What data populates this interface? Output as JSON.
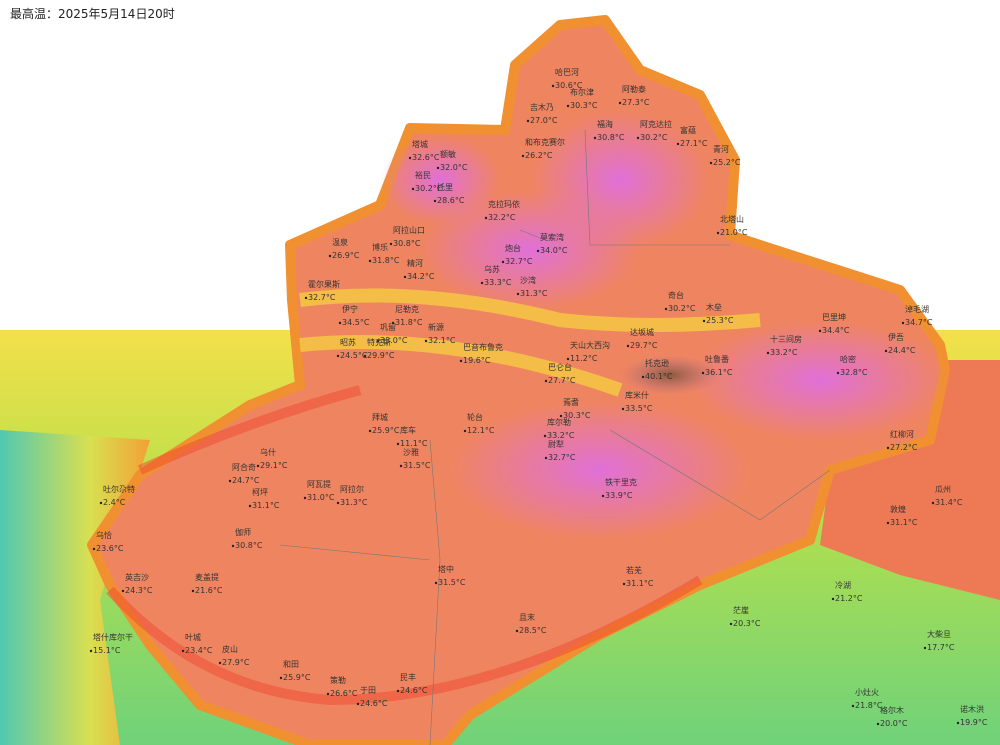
{
  "title": "最高温：2025年5月14日20时",
  "stations": [
    {
      "name": "哈巴河",
      "temp": "30.6°C"
    },
    {
      "name": "布尔津",
      "temp": "30.3°C"
    },
    {
      "name": "阿勒泰",
      "temp": "27.3°C"
    },
    {
      "name": "吉木乃",
      "temp": "27.0°C"
    },
    {
      "name": "福海",
      "temp": "30.8°C"
    },
    {
      "name": "阿克达拉",
      "temp": "30.2°C"
    },
    {
      "name": "富蕴",
      "temp": "27.1°C"
    },
    {
      "name": "青河",
      "temp": "25.2°C"
    },
    {
      "name": "和布克赛尔",
      "temp": "26.2°C"
    },
    {
      "name": "塔城",
      "temp": "32.6°C"
    },
    {
      "name": "额敏",
      "temp": "32.0°C"
    },
    {
      "name": "裕民",
      "temp": "30.2°C"
    },
    {
      "name": "托里",
      "temp": "28.6°C"
    },
    {
      "name": "克拉玛依",
      "temp": "32.2°C"
    },
    {
      "name": "北塔山",
      "temp": "21.0°C"
    },
    {
      "name": "阿拉山口",
      "temp": "30.8°C"
    },
    {
      "name": "温泉",
      "temp": "26.9°C"
    },
    {
      "name": "博乐",
      "temp": "31.8°C"
    },
    {
      "name": "精河",
      "temp": "34.2°C"
    },
    {
      "name": "莫索湾",
      "temp": "34.0°C"
    },
    {
      "name": "炮台",
      "temp": "32.7°C"
    },
    {
      "name": "乌苏",
      "temp": "33.3°C"
    },
    {
      "name": "沙湾",
      "temp": "31.3°C"
    },
    {
      "name": "奇台",
      "temp": "30.2°C"
    },
    {
      "name": "木垒",
      "temp": "25.3°C"
    },
    {
      "name": "巴里坤",
      "temp": "34.4°C"
    },
    {
      "name": "淖毛湖",
      "temp": "34.7°C"
    },
    {
      "name": "伊吾",
      "temp": "24.4°C"
    },
    {
      "name": "十三间房",
      "temp": "33.2°C"
    },
    {
      "name": "哈密",
      "temp": "32.8°C"
    },
    {
      "name": "霍尔果斯",
      "temp": "32.7°C"
    },
    {
      "name": "伊宁",
      "temp": "34.5°C"
    },
    {
      "name": "尼勒克",
      "temp": "31.8°C"
    },
    {
      "name": "巩留",
      "temp": "33.0°C"
    },
    {
      "name": "新源",
      "temp": "32.1°C"
    },
    {
      "name": "昭苏",
      "temp": "24.5°C"
    },
    {
      "name": "特克斯",
      "temp": "29.9°C"
    },
    {
      "name": "巴音布鲁克",
      "temp": "19.6°C"
    },
    {
      "name": "天山大西沟",
      "temp": "11.2°C"
    },
    {
      "name": "达坂城",
      "temp": "29.7°C"
    },
    {
      "name": "托克逊",
      "temp": "40.1°C"
    },
    {
      "name": "吐鲁番",
      "temp": "36.1°C"
    },
    {
      "name": "巴仑台",
      "temp": "27.7°C"
    },
    {
      "name": "焉耆",
      "temp": "30.3°C"
    },
    {
      "name": "库米什",
      "temp": "33.5°C"
    },
    {
      "name": "拜城",
      "temp": "25.9°C"
    },
    {
      "name": "库车",
      "temp": "11.1°C"
    },
    {
      "name": "沙雅",
      "temp": "31.5°C"
    },
    {
      "name": "轮台",
      "temp": "12.1°C"
    },
    {
      "name": "库尔勒",
      "temp": "33.2°C"
    },
    {
      "name": "尉犁",
      "temp": "32.7°C"
    },
    {
      "name": "乌什",
      "temp": "29.1°C"
    },
    {
      "name": "阿合奇",
      "temp": "24.7°C"
    },
    {
      "name": "柯坪",
      "temp": "31.1°C"
    },
    {
      "name": "阿瓦提",
      "temp": "31.0°C"
    },
    {
      "name": "阿拉尔",
      "temp": "31.3°C"
    },
    {
      "name": "吐尔尕特",
      "temp": "2.4°C"
    },
    {
      "name": "铁干里克",
      "temp": "33.9°C"
    },
    {
      "name": "红柳河",
      "temp": "27.2°C"
    },
    {
      "name": "敦煌",
      "temp": "31.1°C"
    },
    {
      "name": "瓜州",
      "temp": "31.4°C"
    },
    {
      "name": "乌恰",
      "temp": "23.6°C"
    },
    {
      "name": "伽师",
      "temp": "30.8°C"
    },
    {
      "name": "麦盖提",
      "temp": "21.6°C"
    },
    {
      "name": "英吉沙",
      "temp": "24.3°C"
    },
    {
      "name": "塔什库尔干",
      "temp": "15.1°C"
    },
    {
      "name": "叶城",
      "temp": "23.4°C"
    },
    {
      "name": "皮山",
      "temp": "27.9°C"
    },
    {
      "name": "和田",
      "temp": "25.9°C"
    },
    {
      "name": "策勒",
      "temp": "26.6°C"
    },
    {
      "name": "于田",
      "temp": "24.6°C"
    },
    {
      "name": "民丰",
      "temp": "24.6°C"
    },
    {
      "name": "塔中",
      "temp": "31.5°C"
    },
    {
      "name": "且末",
      "temp": "28.5°C"
    },
    {
      "name": "若羌",
      "temp": "31.1°C"
    },
    {
      "name": "冷湖",
      "temp": "21.2°C"
    },
    {
      "name": "茫崖",
      "temp": "20.3°C"
    },
    {
      "name": "大柴旦",
      "temp": "17.7°C"
    },
    {
      "name": "小灶火",
      "temp": "21.8°C"
    },
    {
      "name": "格尔木",
      "temp": "20.0°C"
    },
    {
      "name": "诺木洪",
      "temp": "19.9°C"
    }
  ]
}
